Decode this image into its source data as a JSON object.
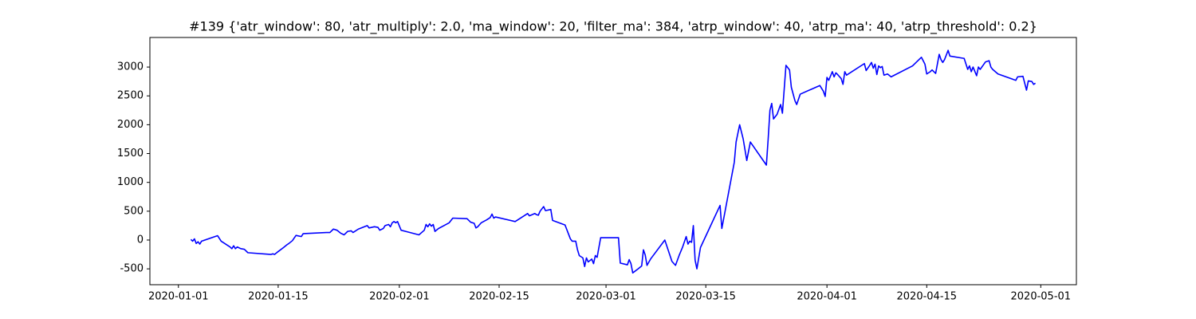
{
  "chart_data": {
    "type": "line",
    "title": "#139 {'atr_window': 80, 'atr_multiply': 2.0, 'ma_window': 20, 'filter_ma': 384, 'atrp_window': 40, 'atrp_ma': 40, 'atrp_threshold': 0.2}",
    "color": "#0000ff",
    "xlim": [
      "2019-12-28",
      "2020-05-06"
    ],
    "xticks": [
      "2020-01-01",
      "2020-01-15",
      "2020-02-01",
      "2020-02-15",
      "2020-03-01",
      "2020-03-15",
      "2020-04-01",
      "2020-04-15",
      "2020-05-01"
    ],
    "ylim": [
      -775,
      3513
    ],
    "yticks": [
      -500,
      0,
      500,
      1000,
      1500,
      2000,
      2500,
      3000
    ],
    "x": [
      "2020-01-02T18:00",
      "2020-01-03T00:00",
      "2020-01-03T06:00",
      "2020-01-03T12:00",
      "2020-01-03T18:00",
      "2020-01-04T00:00",
      "2020-01-04T06:00",
      "2020-01-06T12:00",
      "2020-01-07T00:00",
      "2020-01-08T06:00",
      "2020-01-08T12:00",
      "2020-01-08T18:00",
      "2020-01-09T00:00",
      "2020-01-09T06:00",
      "2020-01-09T18:00",
      "2020-01-10T06:00",
      "2020-01-10T18:00",
      "2020-01-14T00:00",
      "2020-01-14T06:00",
      "2020-01-14T12:00",
      "2020-01-15T00:00",
      "2020-01-15T18:00",
      "2020-01-16T06:00",
      "2020-01-16T12:00",
      "2020-01-17T00:00",
      "2020-01-17T12:00",
      "2020-01-18T06:00",
      "2020-01-18T12:00",
      "2020-01-21T18:00",
      "2020-01-22T06:00",
      "2020-01-22T18:00",
      "2020-01-23T06:00",
      "2020-01-23T18:00",
      "2020-01-24T06:00",
      "2020-01-24T18:00",
      "2020-01-25T06:00",
      "2020-01-25T12:00",
      "2020-01-26T06:00",
      "2020-01-27T12:00",
      "2020-01-27T18:00",
      "2020-01-28T12:00",
      "2020-01-29T00:00",
      "2020-01-29T06:00",
      "2020-01-29T18:00",
      "2020-01-30T00:00",
      "2020-01-30T12:00",
      "2020-01-30T18:00",
      "2020-01-31T00:00",
      "2020-01-31T06:00",
      "2020-01-31T12:00",
      "2020-01-31T18:00",
      "2020-02-01T06:00",
      "2020-02-03T18:00",
      "2020-02-04T12:00",
      "2020-02-04T18:00",
      "2020-02-05T00:00",
      "2020-02-05T06:00",
      "2020-02-05T12:00",
      "2020-02-05T18:00",
      "2020-02-06T00:00",
      "2020-02-06T12:00",
      "2020-02-07T06:00",
      "2020-02-08T00:00",
      "2020-02-08T12:00",
      "2020-02-10T12:00",
      "2020-02-11T00:00",
      "2020-02-11T12:00",
      "2020-02-11T18:00",
      "2020-02-12T00:00",
      "2020-02-12T12:00",
      "2020-02-13T06:00",
      "2020-02-13T18:00",
      "2020-02-14T00:00",
      "2020-02-14T06:00",
      "2020-02-14T12:00",
      "2020-02-17T06:00",
      "2020-02-18T18:00",
      "2020-02-19T00:00",
      "2020-02-19T06:00",
      "2020-02-20T00:00",
      "2020-02-20T06:00",
      "2020-02-20T12:00",
      "2020-02-20T18:00",
      "2020-02-21T06:00",
      "2020-02-21T12:00",
      "2020-02-22T06:00",
      "2020-02-22T12:00",
      "2020-02-24T06:00",
      "2020-02-24T12:00",
      "2020-02-25T00:00",
      "2020-02-25T06:00",
      "2020-02-25T18:00",
      "2020-02-26T00:00",
      "2020-02-26T06:00",
      "2020-02-26T18:00",
      "2020-02-27T00:00",
      "2020-02-27T06:00",
      "2020-02-27T12:00",
      "2020-02-28T00:00",
      "2020-02-28T06:00",
      "2020-02-28T12:00",
      "2020-02-28T18:00",
      "2020-02-29T06:00",
      "2020-03-02T18:00",
      "2020-03-03T00:00",
      "2020-03-04T00:00",
      "2020-03-04T06:00",
      "2020-03-04T12:00",
      "2020-03-04T18:00",
      "2020-03-05T12:00",
      "2020-03-06T00:00",
      "2020-03-06T06:00",
      "2020-03-06T12:00",
      "2020-03-06T18:00",
      "2020-03-07T06:00",
      "2020-03-09T06:00",
      "2020-03-10T06:00",
      "2020-03-10T18:00",
      "2020-03-11T06:00",
      "2020-03-11T18:00",
      "2020-03-12T06:00",
      "2020-03-12T12:00",
      "2020-03-12T18:00",
      "2020-03-13T00:00",
      "2020-03-13T06:00",
      "2020-03-13T12:00",
      "2020-03-13T18:00",
      "2020-03-14T06:00",
      "2020-03-17T00:00",
      "2020-03-17T06:00",
      "2020-03-19T00:00",
      "2020-03-19T06:00",
      "2020-03-19T18:00",
      "2020-03-20T06:00",
      "2020-03-20T18:00",
      "2020-03-21T06:00",
      "2020-03-23T12:00",
      "2020-03-23T18:00",
      "2020-03-24T00:00",
      "2020-03-24T06:00",
      "2020-03-24T12:00",
      "2020-03-25T00:00",
      "2020-03-25T12:00",
      "2020-03-25T18:00",
      "2020-03-26T06:00",
      "2020-03-26T18:00",
      "2020-03-27T00:00",
      "2020-03-27T12:00",
      "2020-03-27T18:00",
      "2020-03-28T06:00",
      "2020-03-31T00:00",
      "2020-03-31T12:00",
      "2020-03-31T18:00",
      "2020-04-01T00:00",
      "2020-04-01T06:00",
      "2020-04-01T18:00",
      "2020-04-02T00:00",
      "2020-04-02T06:00",
      "2020-04-02T12:00",
      "2020-04-03T00:00",
      "2020-04-03T06:00",
      "2020-04-03T12:00",
      "2020-04-03T18:00",
      "2020-04-06T06:00",
      "2020-04-06T12:00",
      "2020-04-07T00:00",
      "2020-04-07T06:00",
      "2020-04-07T12:00",
      "2020-04-07T18:00",
      "2020-04-08T00:00",
      "2020-04-08T06:00",
      "2020-04-08T12:00",
      "2020-04-08T18:00",
      "2020-04-09T00:00",
      "2020-04-09T12:00",
      "2020-04-10T00:00",
      "2020-04-13T00:00",
      "2020-04-14T06:00",
      "2020-04-14T18:00",
      "2020-04-15T00:00",
      "2020-04-15T12:00",
      "2020-04-15T18:00",
      "2020-04-16T06:00",
      "2020-04-16T18:00",
      "2020-04-17T00:00",
      "2020-04-17T06:00",
      "2020-04-17T12:00",
      "2020-04-18T00:00",
      "2020-04-18T06:00",
      "2020-04-20T06:00",
      "2020-04-20T18:00",
      "2020-04-21T00:00",
      "2020-04-21T06:00",
      "2020-04-21T12:00",
      "2020-04-22T00:00",
      "2020-04-22T06:00",
      "2020-04-22T12:00",
      "2020-04-23T06:00",
      "2020-04-23T18:00",
      "2020-04-24T00:00",
      "2020-04-24T06:00",
      "2020-04-25T00:00",
      "2020-04-27T12:00",
      "2020-04-27T18:00",
      "2020-04-28T12:00",
      "2020-04-29T00:00",
      "2020-04-29T06:00",
      "2020-04-29T18:00",
      "2020-04-30T00:00",
      "2020-04-30T06:00"
    ],
    "values": [
      10,
      -20,
      20,
      -60,
      -30,
      -70,
      -20,
      75,
      -20,
      -120,
      -150,
      -100,
      -150,
      -120,
      -150,
      -160,
      -220,
      -250,
      -240,
      -250,
      -200,
      -130,
      -80,
      -60,
      -10,
      80,
      60,
      110,
      130,
      130,
      190,
      170,
      120,
      90,
      150,
      160,
      130,
      190,
      250,
      210,
      230,
      220,
      170,
      200,
      250,
      270,
      230,
      300,
      320,
      300,
      320,
      170,
      90,
      170,
      270,
      230,
      280,
      240,
      270,
      150,
      200,
      250,
      300,
      380,
      370,
      310,
      290,
      210,
      230,
      300,
      350,
      390,
      450,
      380,
      400,
      320,
      440,
      460,
      420,
      460,
      440,
      430,
      500,
      580,
      510,
      530,
      340,
      260,
      180,
      20,
      -20,
      -20,
      -170,
      -270,
      -310,
      -460,
      -310,
      -380,
      -330,
      -410,
      -270,
      -300,
      40,
      40,
      -400,
      -430,
      -340,
      -410,
      -570,
      -500,
      -450,
      -170,
      -260,
      -440,
      -330,
      0,
      -370,
      -440,
      -270,
      -120,
      60,
      -70,
      -20,
      -40,
      250,
      -350,
      -500,
      -130,
      600,
      200,
      1350,
      1700,
      2000,
      1750,
      1380,
      1700,
      1300,
      1750,
      2250,
      2370,
      2100,
      2180,
      2350,
      2200,
      3030,
      2950,
      2650,
      2420,
      2350,
      2530,
      2680,
      2580,
      2490,
      2820,
      2770,
      2920,
      2830,
      2900,
      2870,
      2800,
      2700,
      2920,
      2860,
      3060,
      2940,
      3030,
      3080,
      2980,
      3050,
      2870,
      3020,
      2990,
      3010,
      2860,
      2880,
      2830,
      3020,
      3170,
      3050,
      2880,
      2920,
      2950,
      2890,
      3220,
      3130,
      3080,
      3130,
      3290,
      3190,
      3150,
      2960,
      3020,
      2920,
      3000,
      2850,
      3000,
      2960,
      3090,
      3110,
      3000,
      2960,
      2880,
      2770,
      2830,
      2840,
      2600,
      2760,
      2750,
      2700,
      2720
    ]
  }
}
